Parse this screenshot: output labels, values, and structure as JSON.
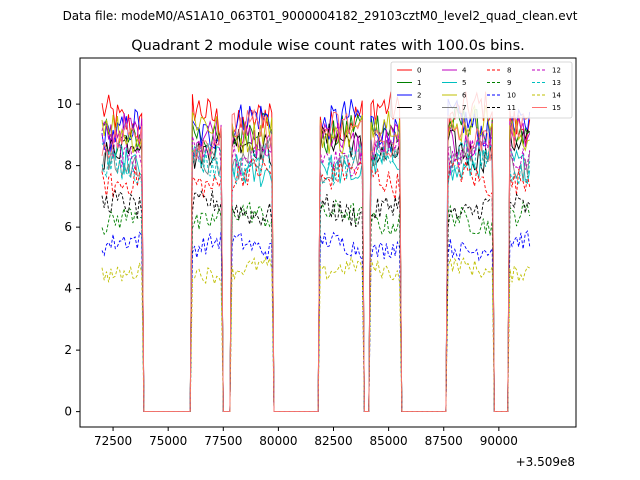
{
  "chart_data": {
    "type": "line",
    "suptitle": "Data file: modeM0/AS1A10_063T01_9000004182_29103cztM0_level2_quad_clean.evt",
    "title": "Quadrant 2 module wise count rates with 100.0s bins.",
    "xlabel": "",
    "ylabel": "",
    "x_offset_label": "+3.509e8",
    "xlim": [
      71000,
      93500
    ],
    "ylim": [
      -0.5,
      11.5
    ],
    "x_ticks": [
      72500,
      75000,
      77500,
      80000,
      82500,
      85000,
      87500,
      90000
    ],
    "x_tick_labels": [
      "72500",
      "75000",
      "77500",
      "80000",
      "82500",
      "85000",
      "87500",
      "90000"
    ],
    "y_ticks": [
      0,
      2,
      4,
      6,
      8,
      10
    ],
    "y_tick_labels": [
      "0",
      "2",
      "4",
      "6",
      "8",
      "10"
    ],
    "bin_seconds": 100,
    "on_segments": [
      [
        72000,
        73800
      ],
      [
        76100,
        77400
      ],
      [
        77900,
        79700
      ],
      [
        81900,
        83800
      ],
      [
        84200,
        85500
      ],
      [
        87700,
        89700
      ],
      [
        90500,
        91400
      ]
    ],
    "legend_position": "upper-right",
    "series": [
      {
        "name": "0",
        "color": "#ff0000",
        "dash": "solid",
        "level": 9.6
      },
      {
        "name": "1",
        "color": "#008000",
        "dash": "solid",
        "level": 9.1
      },
      {
        "name": "2",
        "color": "#0000ff",
        "dash": "solid",
        "level": 9.3
      },
      {
        "name": "3",
        "color": "#000000",
        "dash": "solid",
        "level": 8.6
      },
      {
        "name": "4",
        "color": "#bf00bf",
        "dash": "solid",
        "level": 8.9
      },
      {
        "name": "5",
        "color": "#00bfbf",
        "dash": "solid",
        "level": 8.0
      },
      {
        "name": "6",
        "color": "#bfbf00",
        "dash": "solid",
        "level": 9.2
      },
      {
        "name": "7",
        "color": "#808080",
        "dash": "solid",
        "level": 8.2
      },
      {
        "name": "8",
        "color": "#ff0000",
        "dash": "dashed",
        "level": 7.6
      },
      {
        "name": "9",
        "color": "#008000",
        "dash": "dashed",
        "level": 6.3
      },
      {
        "name": "10",
        "color": "#0000ff",
        "dash": "dashed",
        "level": 5.4
      },
      {
        "name": "11",
        "color": "#000000",
        "dash": "dashed",
        "level": 6.6
      },
      {
        "name": "12",
        "color": "#bf00bf",
        "dash": "dashed",
        "level": 8.4
      },
      {
        "name": "13",
        "color": "#00bfbf",
        "dash": "dashed",
        "level": 8.1
      },
      {
        "name": "14",
        "color": "#bfbf00",
        "dash": "dashed",
        "level": 4.6
      },
      {
        "name": "15",
        "color": "#ff7070",
        "dash": "solid",
        "level": 9.0
      }
    ]
  }
}
